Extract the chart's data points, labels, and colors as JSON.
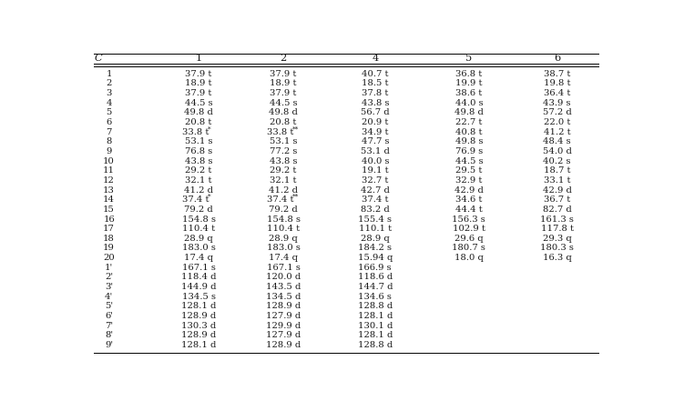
{
  "header": [
    "C",
    "1",
    "2",
    "4",
    "5",
    "6"
  ],
  "rows": [
    [
      "1",
      "37.9",
      "t",
      "",
      "37.9",
      "t",
      "",
      "40.7",
      "t",
      "",
      "36.8",
      "t",
      "",
      "38.7",
      "t",
      ""
    ],
    [
      "2",
      "18.9",
      "t",
      "",
      "18.9",
      "t",
      "",
      "18.5",
      "t",
      "",
      "19.9",
      "t",
      "",
      "19.8",
      "t",
      ""
    ],
    [
      "3",
      "37.9",
      "t",
      "",
      "37.9",
      "t",
      "",
      "37.8",
      "t",
      "",
      "38.6",
      "t",
      "",
      "36.4",
      "t",
      ""
    ],
    [
      "4",
      "44.5",
      "s",
      "",
      "44.5",
      "s",
      "",
      "43.8",
      "s",
      "",
      "44.0",
      "s",
      "",
      "43.9",
      "s",
      ""
    ],
    [
      "5",
      "49.8",
      "d",
      "",
      "49.8",
      "d",
      "",
      "56.7",
      "d",
      "",
      "49.8",
      "d",
      "",
      "57.2",
      "d",
      ""
    ],
    [
      "6",
      "20.8",
      "t",
      "",
      "20.8",
      "t",
      "",
      "20.9",
      "t",
      "",
      "22.7",
      "t",
      "",
      "22.0",
      "t",
      ""
    ],
    [
      "7",
      "33.8",
      "t",
      "*",
      "33.8",
      "t",
      "**",
      "34.9",
      "t",
      "",
      "40.8",
      "t",
      "",
      "41.2",
      "t",
      ""
    ],
    [
      "8",
      "53.1",
      "s",
      "",
      "53.1",
      "s",
      "",
      "47.7",
      "s",
      "",
      "49.8",
      "s",
      "",
      "48.4",
      "s",
      ""
    ],
    [
      "9",
      "76.8",
      "s",
      "",
      "77.2",
      "s",
      "",
      "53.1",
      "d",
      "",
      "76.9",
      "s",
      "",
      "54.0",
      "d",
      ""
    ],
    [
      "10",
      "43.8",
      "s",
      "",
      "43.8",
      "s",
      "",
      "40.0",
      "s",
      "",
      "44.5",
      "s",
      "",
      "40.2",
      "s",
      ""
    ],
    [
      "11",
      "29.2",
      "t",
      "",
      "29.2",
      "t",
      "",
      "19.1",
      "t",
      "",
      "29.5",
      "t",
      "",
      "18.7",
      "t",
      ""
    ],
    [
      "12",
      "32.1",
      "t",
      "",
      "32.1",
      "t",
      "",
      "32.7",
      "t",
      "",
      "32.9",
      "t",
      "",
      "33.1",
      "t",
      ""
    ],
    [
      "13",
      "41.2",
      "d",
      "",
      "41.2",
      "d",
      "",
      "42.7",
      "d",
      "",
      "42.9",
      "d",
      "",
      "42.9",
      "d",
      ""
    ],
    [
      "14",
      "37.4",
      "t",
      "*",
      "37.4",
      "t",
      "**",
      "37.4",
      "t",
      "",
      "34.6",
      "t",
      "",
      "36.7",
      "t",
      ""
    ],
    [
      "15",
      "79.2",
      "d",
      "",
      "79.2",
      "d",
      "",
      "83.2",
      "d",
      "",
      "44.4",
      "t",
      "",
      "82.7",
      "d",
      ""
    ],
    [
      "16",
      "154.8",
      "s",
      "",
      "154.8",
      "s",
      "",
      "155.4",
      "s",
      "",
      "156.3",
      "s",
      "",
      "161.3",
      "s",
      ""
    ],
    [
      "17",
      "110.4",
      "t",
      "",
      "110.4",
      "t",
      "",
      "110.1",
      "t",
      "",
      "102.9",
      "t",
      "",
      "117.8",
      "t",
      ""
    ],
    [
      "18",
      "28.9",
      "q",
      "",
      "28.9",
      "q",
      "",
      "28.9",
      "q",
      "",
      "29.6",
      "q",
      "",
      "29.3",
      "q",
      ""
    ],
    [
      "19",
      "183.0",
      "s",
      "",
      "183.0",
      "s",
      "",
      "184.2",
      "s",
      "",
      "180.7",
      "s",
      "",
      "180.3",
      "s",
      ""
    ],
    [
      "20",
      "17.4",
      "q",
      "",
      "17.4",
      "q",
      "",
      "15.94",
      "q",
      "",
      "18.0",
      "q",
      "",
      "16.3",
      "q",
      ""
    ],
    [
      "1'",
      "167.1",
      "s",
      "",
      "167.1",
      "s",
      "",
      "166.9",
      "s",
      "",
      "",
      "",
      "",
      "",
      "",
      ""
    ],
    [
      "2'",
      "118.4",
      "d",
      "",
      "120.0",
      "d",
      "",
      "118.6",
      "d",
      "",
      "",
      "",
      "",
      "",
      "",
      ""
    ],
    [
      "3'",
      "144.9",
      "d",
      "",
      "143.5",
      "d",
      "",
      "144.7",
      "d",
      "",
      "",
      "",
      "",
      "",
      "",
      ""
    ],
    [
      "4'",
      "134.5",
      "s",
      "",
      "134.5",
      "d",
      "",
      "134.6",
      "s",
      "",
      "",
      "",
      "",
      "",
      "",
      ""
    ],
    [
      "5'",
      "128.1",
      "d",
      "",
      "128.9",
      "d",
      "",
      "128.8",
      "d",
      "",
      "",
      "",
      "",
      "",
      "",
      ""
    ],
    [
      "6'",
      "128.9",
      "d",
      "",
      "127.9",
      "d",
      "",
      "128.1",
      "d",
      "",
      "",
      "",
      "",
      "",
      "",
      ""
    ],
    [
      "7'",
      "130.3",
      "d",
      "",
      "129.9",
      "d",
      "",
      "130.1",
      "d",
      "",
      "",
      "",
      "",
      "",
      "",
      ""
    ],
    [
      "8'",
      "128.9",
      "d",
      "",
      "127.9",
      "d",
      "",
      "128.1",
      "d",
      "",
      "",
      "",
      "",
      "",
      "",
      ""
    ],
    [
      "9'",
      "128.1",
      "d",
      "",
      "128.9",
      "d",
      "",
      "128.8",
      "d",
      "",
      "",
      "",
      "",
      "",
      "",
      ""
    ]
  ],
  "bg_color": "#ffffff",
  "text_color": "#1a1a1a",
  "font_size": 7.2,
  "fig_width": 7.4,
  "fig_height": 4.41,
  "dpi": 100
}
